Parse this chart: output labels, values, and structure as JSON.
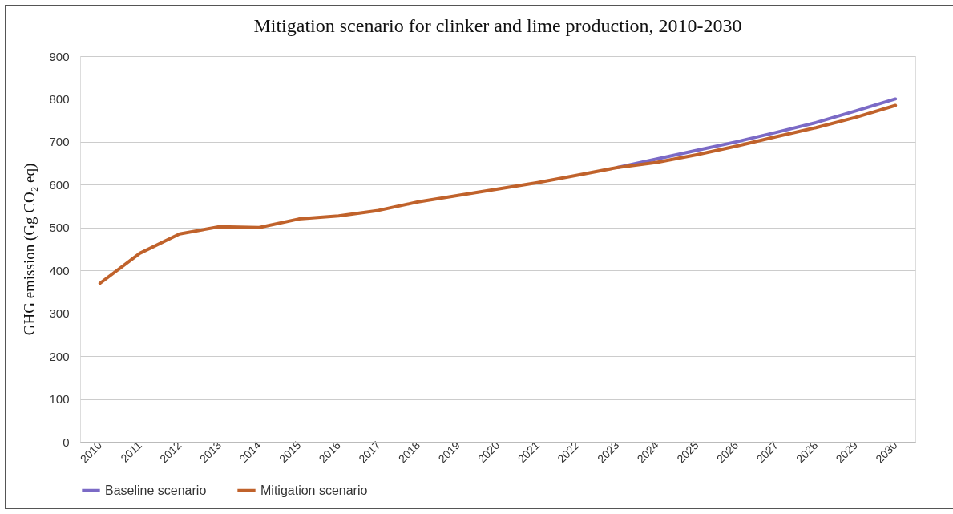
{
  "chart_data": {
    "type": "line",
    "title": "Mitigation scenario for clinker and lime production, 2010-2030",
    "ylabel": "GHG emission (Gg CO₂ eq)",
    "categories": [
      "2010",
      "2011",
      "2012",
      "2013",
      "2014",
      "2015",
      "2016",
      "2017",
      "2018",
      "2019",
      "2020",
      "2021",
      "2022",
      "2023",
      "2024",
      "2025",
      "2026",
      "2027",
      "2028",
      "2029",
      "2030"
    ],
    "series": [
      {
        "name": "Baseline scenario",
        "color": "#7b6ac6",
        "values": [
          null,
          null,
          null,
          null,
          null,
          null,
          null,
          null,
          null,
          null,
          null,
          null,
          null,
          640,
          660,
          680,
          700,
          722,
          745,
          772,
          800
        ]
      },
      {
        "name": "Mitigation scenario",
        "color": "#c0622b",
        "values": [
          370,
          440,
          485,
          502,
          500,
          520,
          527,
          540,
          560,
          575,
          590,
          605,
          622,
          640,
          652,
          670,
          690,
          712,
          733,
          757,
          785
        ]
      }
    ],
    "ylim": [
      0,
      900
    ],
    "yticks": [
      0,
      100,
      200,
      300,
      400,
      500,
      600,
      700,
      800,
      900
    ],
    "grid": "y",
    "legend": "bottom",
    "line_style": "solid"
  }
}
